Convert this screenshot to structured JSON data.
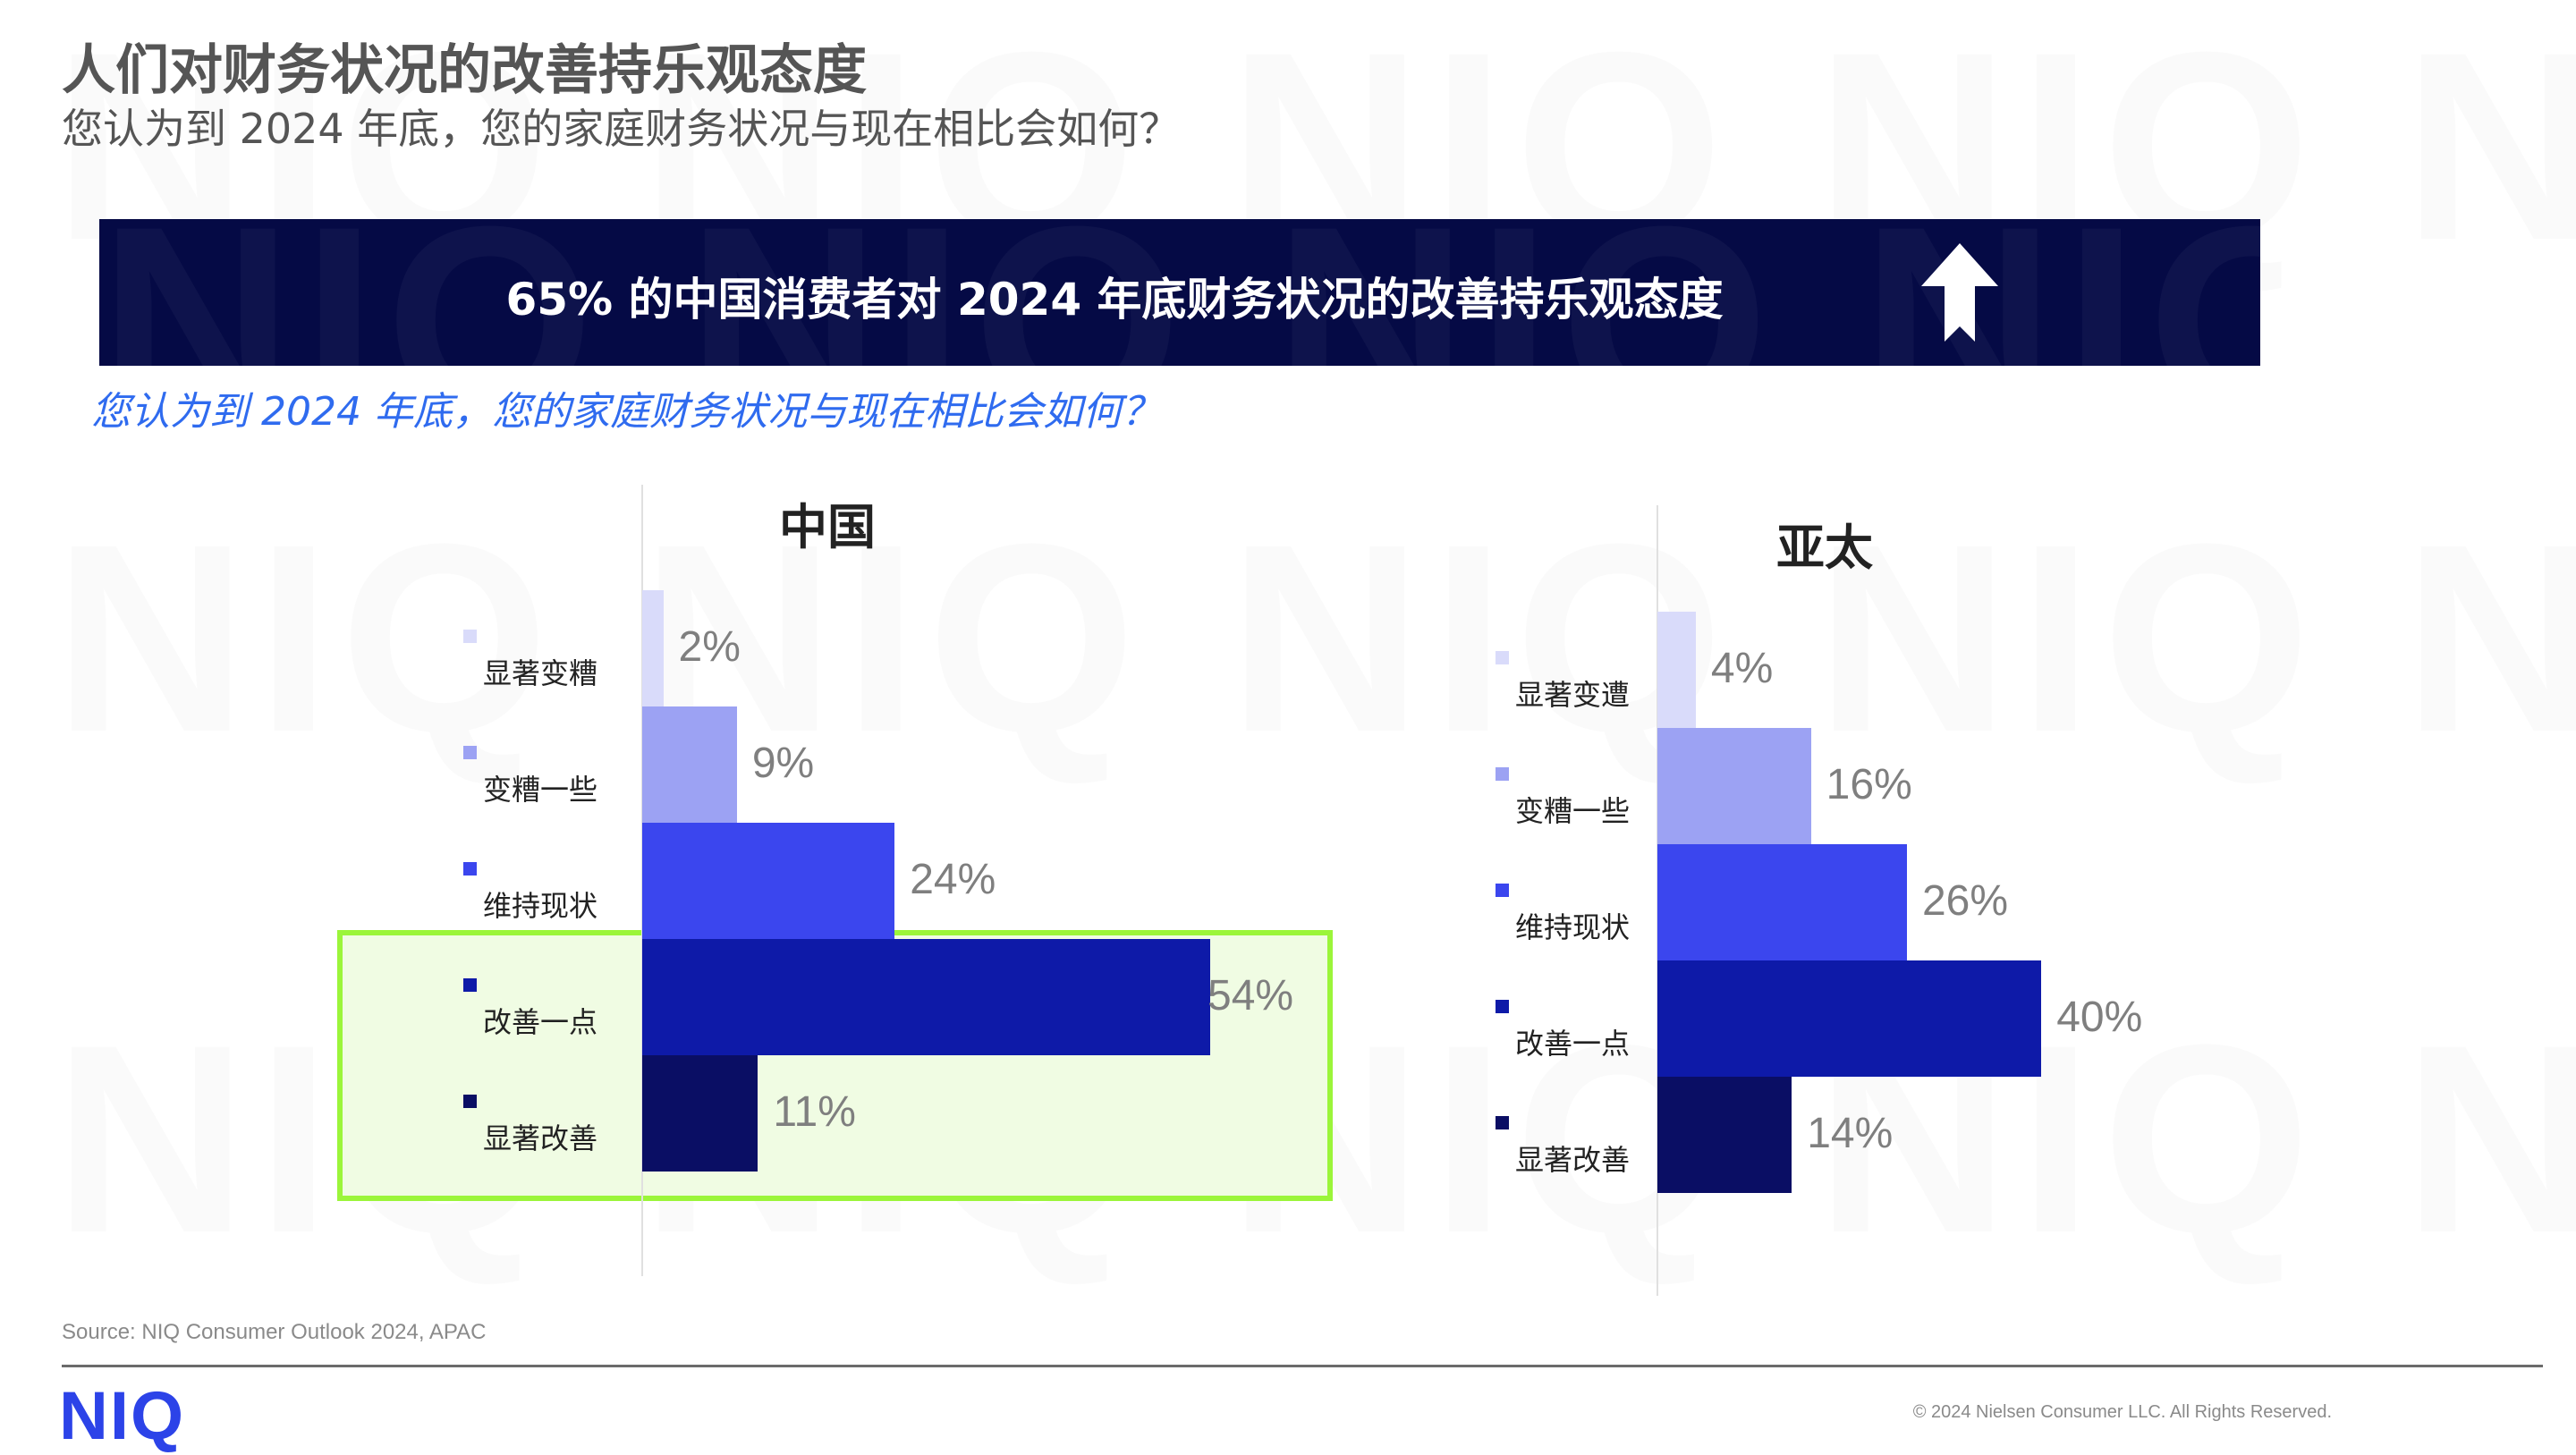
{
  "header": {
    "title": "人们对财务状况的改善持乐观态度",
    "subtitle": "您认为到 2024 年底，您的家庭财务状况与现在相比会如何？"
  },
  "banner": {
    "text": "65% 的中国消费者对 2024 年底财务状况的改善持乐观态度",
    "icon": "arrow-up-icon"
  },
  "question": "您认为到 2024 年底，您的家庭财务状况与现在相比会如何？",
  "chart_data": [
    {
      "type": "bar",
      "orientation": "horizontal",
      "title": "中国",
      "categories": [
        "显著变糟",
        "变糟一些",
        "维持现状",
        "改善一点",
        "显著改善"
      ],
      "values": [
        2,
        9,
        24,
        54,
        11
      ],
      "labels": [
        "2%",
        "9%",
        "24%",
        "54%",
        "11%"
      ],
      "colors": [
        "#d9dbfa",
        "#9ca2f3",
        "#3b46ee",
        "#0e1aa8",
        "#0a0e64"
      ],
      "highlighted": [
        "改善一点",
        "显著改善"
      ],
      "highlight_color": "#9bf53a"
    },
    {
      "type": "bar",
      "orientation": "horizontal",
      "title": "亚太",
      "categories": [
        "显著变遭",
        "变糟一些",
        "维持现状",
        "改善一点",
        "显著改善"
      ],
      "values": [
        4,
        16,
        26,
        40,
        14
      ],
      "labels": [
        "4%",
        "16%",
        "26%",
        "40%",
        "14%"
      ],
      "colors": [
        "#d9dbfa",
        "#9ca2f3",
        "#3b46ee",
        "#0e1aa8",
        "#0a0e64"
      ]
    }
  ],
  "footer": {
    "source": "Source: NIQ Consumer Outlook 2024, APAC",
    "logo": "NIQ",
    "copyright": "© 2024 Nielsen Consumer LLC. All Rights Reserved."
  }
}
